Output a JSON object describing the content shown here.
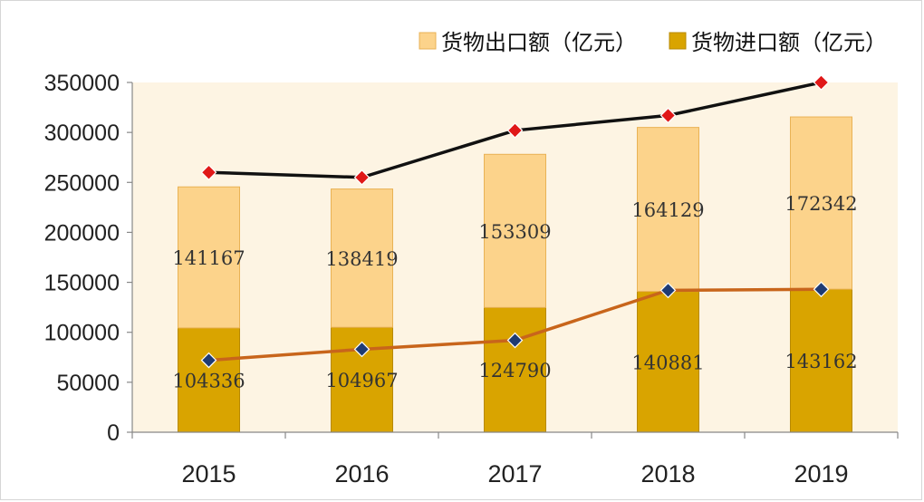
{
  "chart_data": {
    "type": "bar",
    "stacked": true,
    "categories": [
      "2015",
      "2016",
      "2017",
      "2018",
      "2019"
    ],
    "series": [
      {
        "name": "货物出口额（亿元）",
        "color": "#fcd38b",
        "values": [
          141167,
          138419,
          153309,
          164129,
          172342
        ]
      },
      {
        "name": "货物进口额（亿元）",
        "color": "#d9a400",
        "values": [
          104336,
          104967,
          124790,
          140881,
          143162
        ]
      }
    ],
    "stack_order": [
      "货物进口额（亿元）",
      "货物出口额（亿元）"
    ],
    "lines": [
      {
        "color": "#111111",
        "marker_color": "#e01818",
        "values": [
          260000,
          255000,
          302000,
          317000,
          350000
        ]
      },
      {
        "color": "#c8651b",
        "marker_color": "#1f3b73",
        "values": [
          72000,
          83000,
          92000,
          142000,
          143000
        ]
      }
    ],
    "yticks": [
      "0",
      "50000",
      "100000",
      "150000",
      "200000",
      "250000",
      "300000",
      "350000"
    ],
    "ylim": [
      0,
      350000
    ],
    "legend_position": "top-right",
    "plot_background": "#fdf4e3",
    "grid": false
  }
}
